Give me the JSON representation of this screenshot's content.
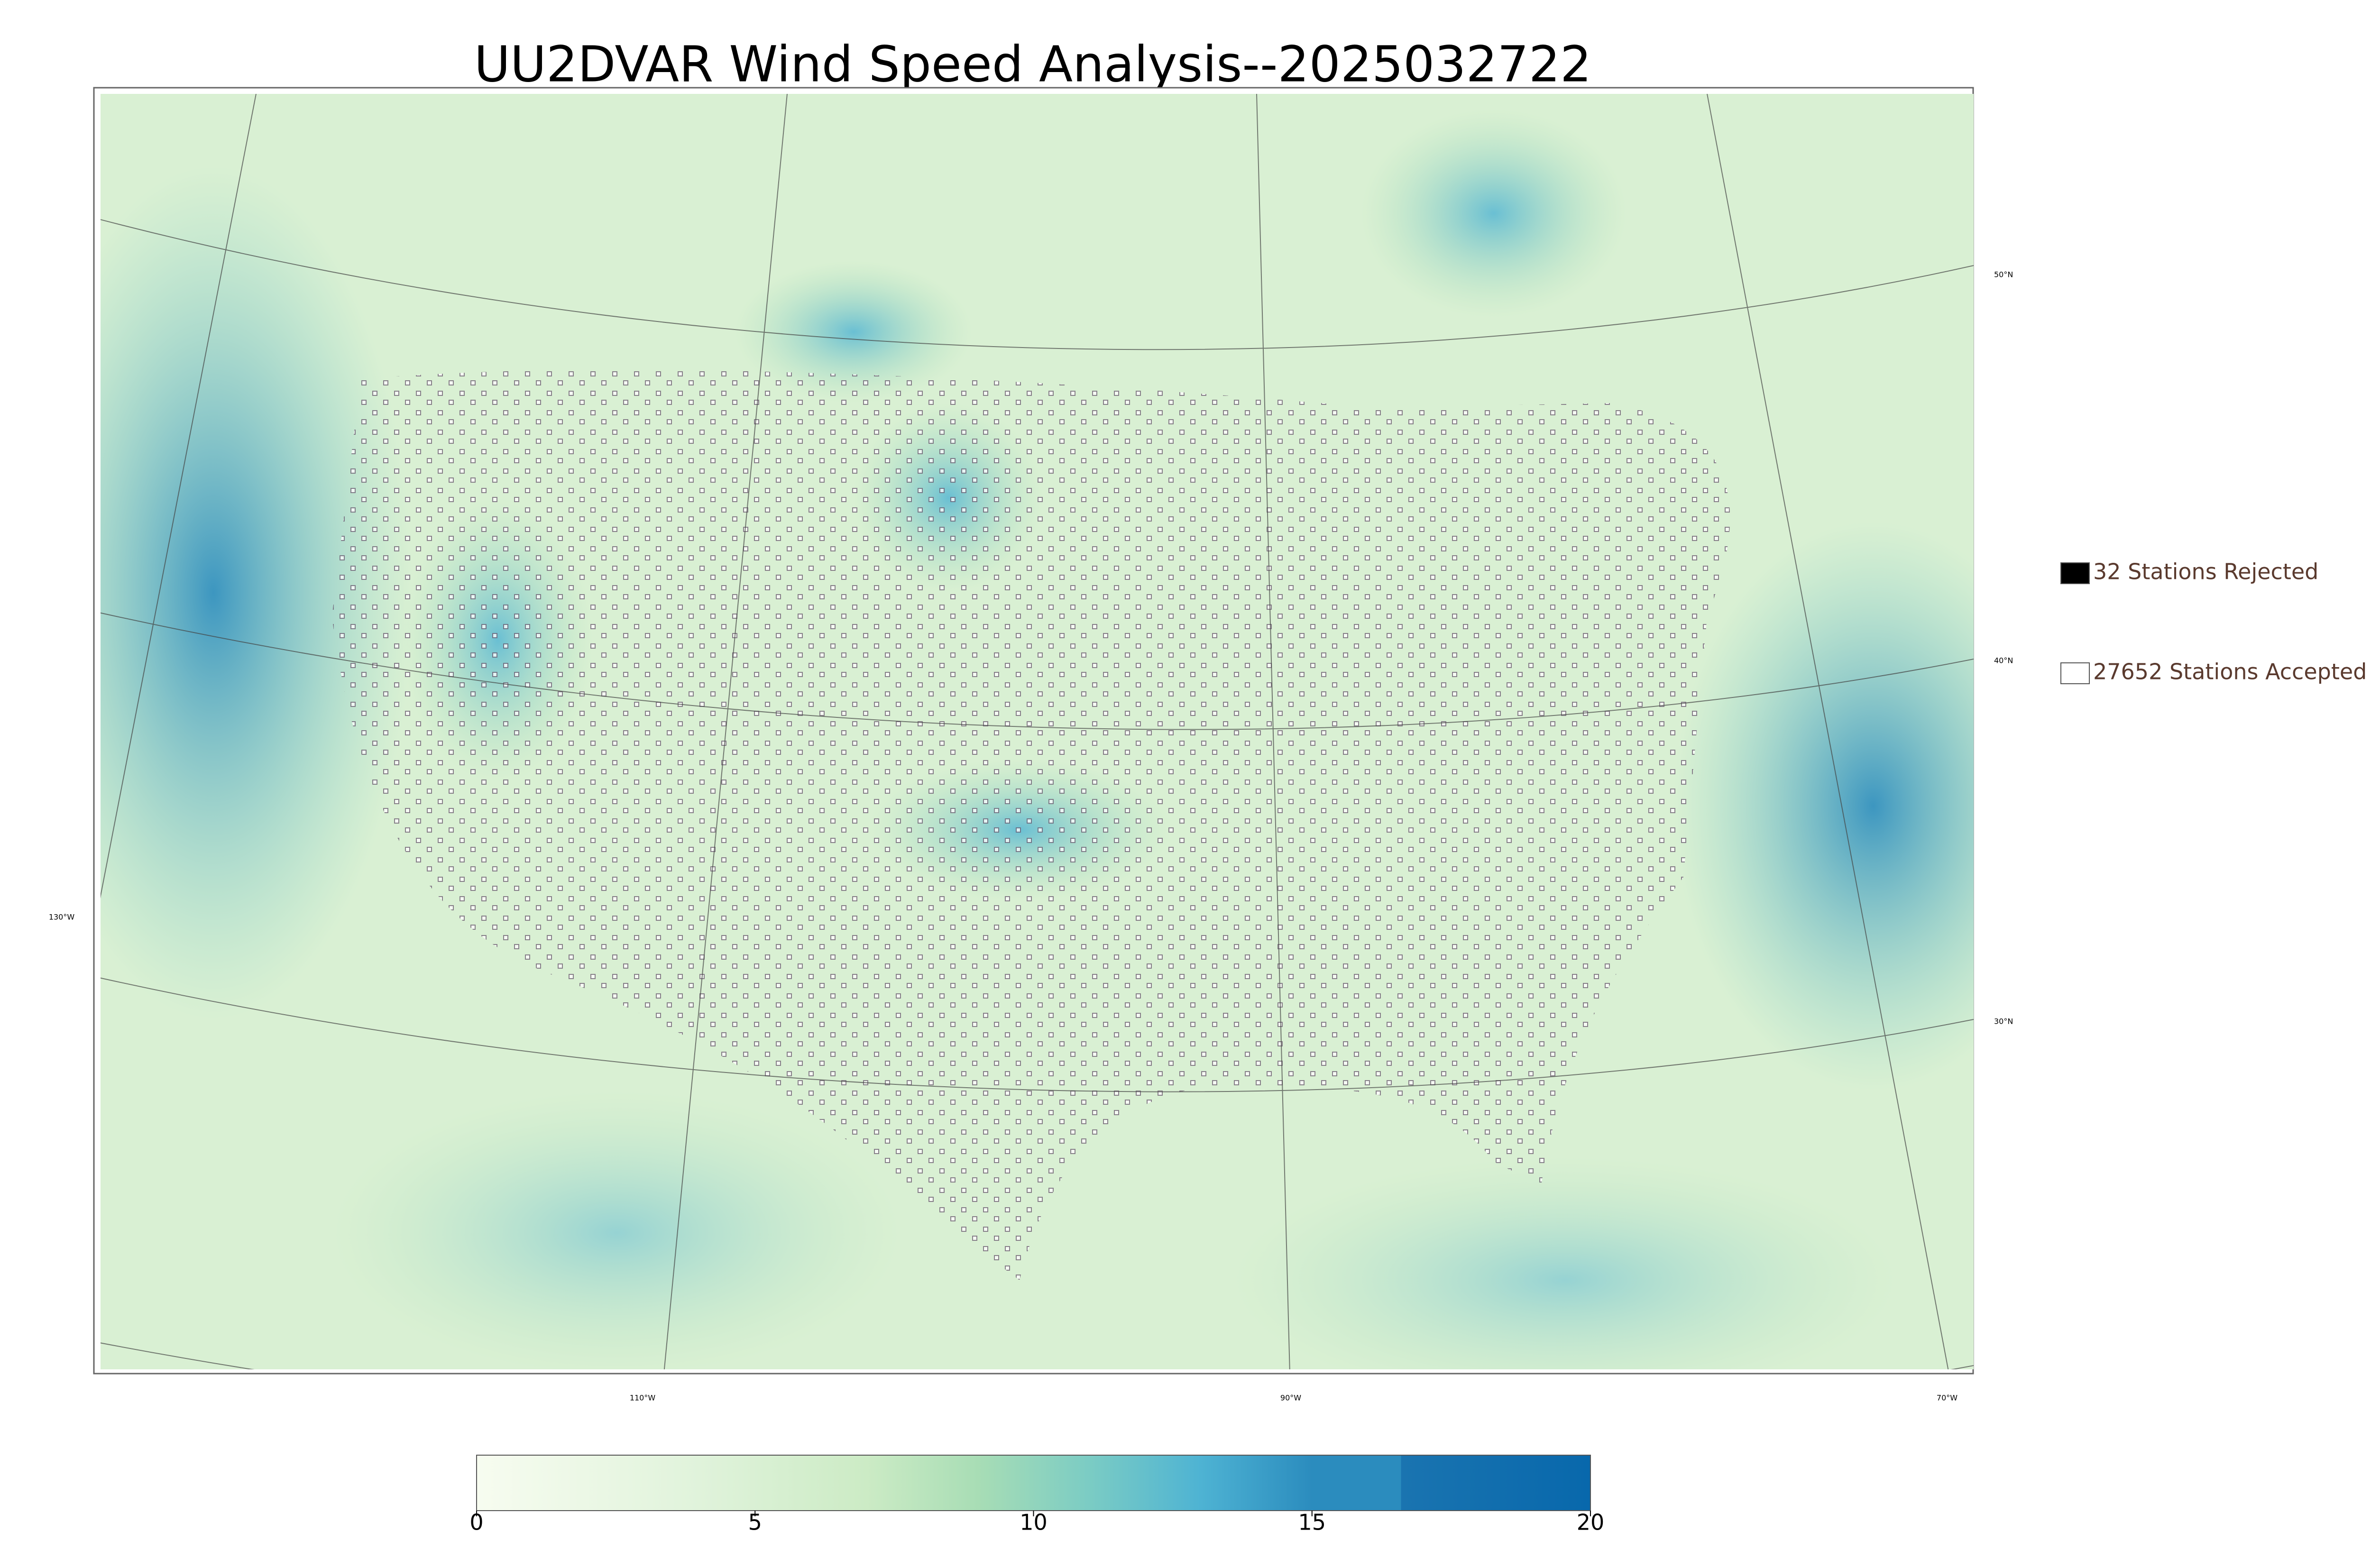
{
  "title": "UU2DVAR Wind Speed Analysis--2025032722",
  "legend": [
    {
      "label": "32 Stations Rejected",
      "fill": "#000000"
    },
    {
      "label": "27652 Stations Accepted",
      "fill": "#ffffff"
    }
  ],
  "colorbar": {
    "lim": [
      0,
      20
    ],
    "ticks": [
      0,
      5,
      10,
      15,
      20
    ]
  },
  "graticule_labels": {
    "longitude": [
      "130°W",
      "110°W",
      "90°W",
      "70°W"
    ],
    "latitude": [
      "50°N",
      "40°N",
      "30°N"
    ]
  }
}
